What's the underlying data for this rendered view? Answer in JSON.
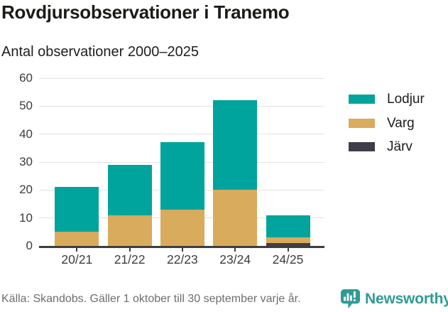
{
  "title": "Rovdjursobservationer i Tranemo",
  "subtitle": "Antal observationer 2000–2025",
  "footer": {
    "source": "Källa: Skandobs. Gäller 1 oktober till 30 september varje år.",
    "brand": "Newsworthy",
    "brand_color": "#2f9b95"
  },
  "colors": {
    "gridline": "#e3e3e3",
    "axis": "#3f3e3e",
    "tick_label": "#3c3c3c",
    "background": "#ffffff"
  },
  "chart_data": {
    "type": "bar",
    "stacked": true,
    "title": "Rovdjursobservationer i Tranemo",
    "subtitle": "Antal observationer 2000–2025",
    "categories": [
      "20/21",
      "21/22",
      "22/23",
      "23/24",
      "24/25"
    ],
    "series": [
      {
        "name": "Lodjur",
        "color": "#00a49c",
        "values": [
          16,
          18,
          24,
          32,
          8
        ]
      },
      {
        "name": "Varg",
        "color": "#d9ab5c",
        "values": [
          5,
          11,
          13,
          20,
          2
        ]
      },
      {
        "name": "Järv",
        "color": "#403d4a",
        "values": [
          0,
          0,
          0,
          0,
          1
        ]
      }
    ],
    "totals": [
      21,
      29,
      37,
      52,
      11
    ],
    "xlabel": "",
    "ylabel": "Antal observationer",
    "ylim": [
      0,
      60
    ],
    "yticks": [
      0,
      10,
      20,
      30,
      40,
      50,
      60
    ],
    "grid": true,
    "legend_position": "right",
    "legend": [
      "Lodjur",
      "Varg",
      "Järv"
    ]
  }
}
